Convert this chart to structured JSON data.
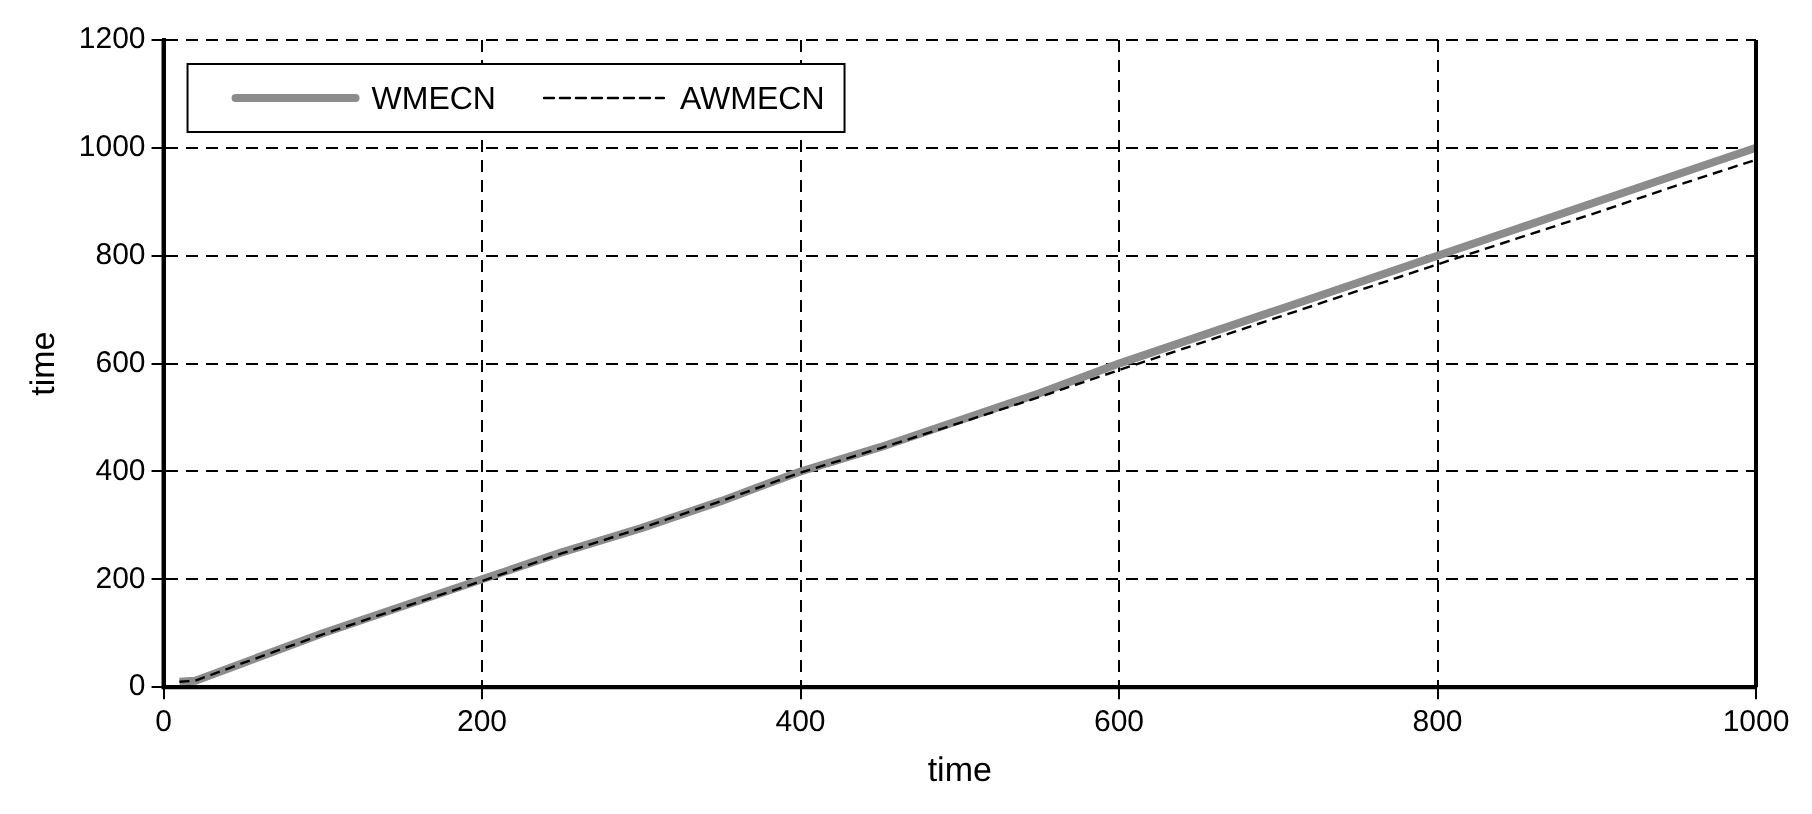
{
  "chart_data": {
    "type": "line",
    "xlabel": "time",
    "ylabel": "time",
    "xlim": [
      0,
      1000
    ],
    "xticks": [
      0,
      200,
      400,
      600,
      800,
      1000
    ],
    "ylim": [
      0,
      1200
    ],
    "yticks": [
      0,
      200,
      400,
      600,
      800,
      1000,
      1200
    ],
    "grid": true,
    "legend": "top left",
    "marker": "none",
    "series": [
      {
        "name": "WMECN",
        "color": "#8c8c8c",
        "line_style": "solid",
        "x": [
          10,
          20,
          50,
          100,
          150,
          200,
          250,
          300,
          350,
          400,
          450,
          500,
          550,
          600,
          650,
          700,
          750,
          800,
          850,
          900,
          950,
          1000
        ],
        "values": [
          10,
          12,
          45,
          100,
          150,
          200,
          250,
          295,
          345,
          400,
          445,
          495,
          545,
          600,
          650,
          700,
          750,
          800,
          850,
          900,
          950,
          1000
        ]
      },
      {
        "name": "AWMECN",
        "color": "#000000",
        "line_style": "dashed",
        "x": [
          10,
          20,
          50,
          100,
          150,
          200,
          250,
          300,
          350,
          400,
          450,
          500,
          550,
          600,
          650,
          700,
          750,
          800,
          850,
          900,
          950,
          1000
        ],
        "values": [
          10,
          12,
          45,
          98,
          148,
          197,
          248,
          295,
          345,
          398,
          443,
          490,
          538,
          588,
          637,
          686,
          735,
          784,
          832,
          880,
          930,
          978
        ]
      }
    ]
  }
}
